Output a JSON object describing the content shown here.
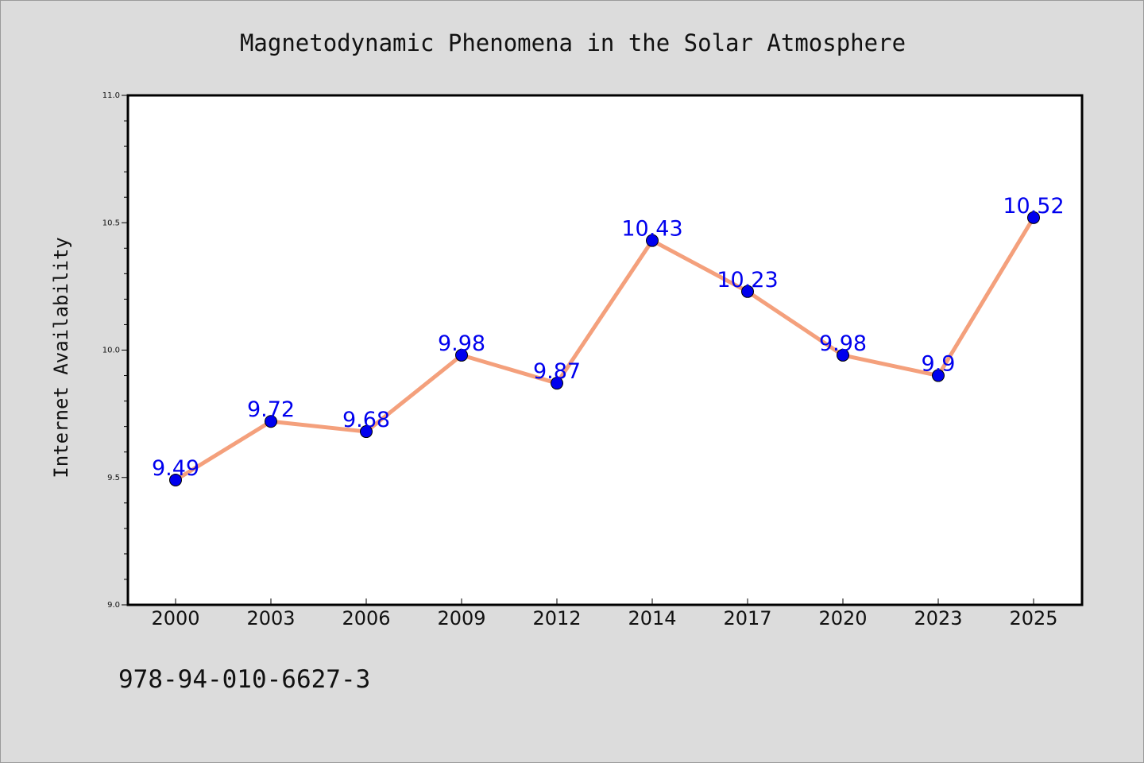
{
  "chart_data": {
    "type": "line",
    "title": "Magnetodynamic Phenomena in the Solar Atmosphere",
    "xlabel": "",
    "ylabel": "Internet Availability",
    "categories": [
      "2000",
      "2003",
      "2006",
      "2009",
      "2012",
      "2014",
      "2017",
      "2020",
      "2023",
      "2025"
    ],
    "series": [
      {
        "values": [
          9.49,
          9.72,
          9.68,
          9.98,
          9.87,
          10.43,
          10.23,
          9.98,
          9.9,
          10.52
        ],
        "labels": [
          "9.49",
          "9.72",
          "9.68",
          "9.98",
          "9.87",
          "10.43",
          "10.23",
          "9.98",
          "9.9",
          "10.52"
        ]
      }
    ],
    "ylim": [
      9.0,
      11.0
    ],
    "yticks": [
      "9.0",
      "9.5",
      "10.0",
      "10.5",
      "11.0"
    ],
    "grid": false,
    "colors": {
      "line": "#f4a07c",
      "marker": "#0000ee",
      "label": "#0000ee",
      "background": "#dcdcdc",
      "plot_background": "#ffffff"
    }
  },
  "footer": {
    "isbn": "978-94-010-6627-3"
  }
}
